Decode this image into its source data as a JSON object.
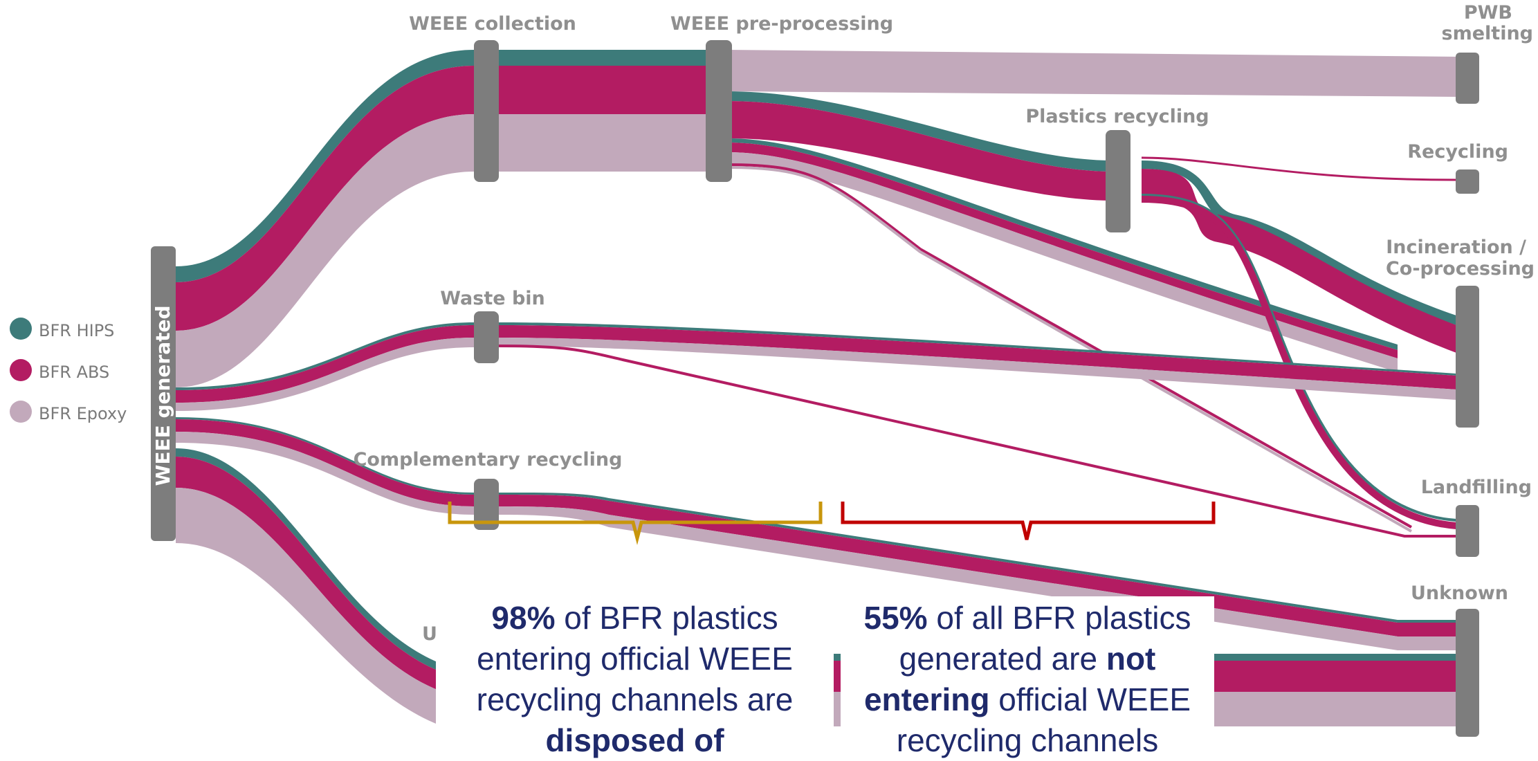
{
  "legend": [
    {
      "label": "BFR HIPS",
      "color": "#3d7b7a"
    },
    {
      "label": "BFR ABS",
      "color": "#b31c62"
    },
    {
      "label": "BFR Epoxy",
      "color": "#c2a9bb"
    }
  ],
  "nodes": {
    "generated": "WEEE generated",
    "collection": "WEEE collection",
    "preprocessing": "WEEE pre-processing",
    "pwb_line1": "PWB",
    "pwb_line2": "smelting",
    "plastics_recycling": "Plastics recycling",
    "recycling": "Recycling",
    "incineration_line1": "Incineration /",
    "incineration_line2": "Co-processing",
    "waste_bin": "Waste bin",
    "complementary": "Complementary recycling",
    "landfilling": "Landfilling",
    "unknown": "Unknown",
    "unknown_partial": "U"
  },
  "callouts": {
    "left": {
      "pct": "98%",
      "text1": " of BFR plastics entering official WEEE recycling channels are ",
      "bold": "disposed of"
    },
    "right": {
      "pct": "55%",
      "text1": " of all BFR plastics generated are ",
      "bold": "not entering",
      "text2": " official WEEE recycling channels"
    }
  },
  "colors": {
    "hips": "#3d7b7a",
    "abs": "#b31c62",
    "epoxy": "#c2a9bb",
    "node": "#7d7d7d",
    "bracket_left": "#c8960c",
    "bracket_right": "#c00000",
    "callout_text": "#1f2a6b"
  }
}
